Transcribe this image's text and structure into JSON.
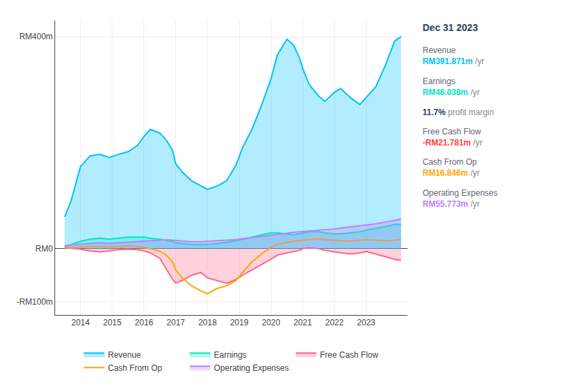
{
  "chart_data": {
    "type": "line",
    "x": [
      2013.5,
      2013.7,
      2014.0,
      2014.3,
      2014.6,
      2014.9,
      2015.2,
      2015.5,
      2015.8,
      2016.0,
      2016.2,
      2016.5,
      2016.7,
      2016.9,
      2017.0,
      2017.2,
      2017.5,
      2017.8,
      2018.0,
      2018.3,
      2018.6,
      2018.9,
      2019.1,
      2019.4,
      2019.7,
      2020.0,
      2020.2,
      2020.5,
      2020.7,
      2020.9,
      2021.0,
      2021.2,
      2021.5,
      2021.7,
      2022.0,
      2022.2,
      2022.5,
      2022.8,
      2023.0,
      2023.3,
      2023.6,
      2023.9,
      2024.1
    ],
    "series": [
      {
        "name": "Revenue",
        "color": "#00bfff",
        "type": "area",
        "values": [
          60,
          90,
          155,
          175,
          178,
          172,
          178,
          183,
          195,
          212,
          225,
          218,
          205,
          185,
          160,
          145,
          128,
          118,
          112,
          118,
          128,
          158,
          190,
          225,
          270,
          320,
          365,
          395,
          385,
          360,
          340,
          310,
          288,
          278,
          295,
          302,
          285,
          272,
          285,
          305,
          345,
          392,
          400
        ]
      },
      {
        "name": "Earnings",
        "color": "#00e8c0",
        "type": "area",
        "values": [
          5,
          8,
          14,
          18,
          20,
          18,
          20,
          22,
          22,
          22,
          20,
          18,
          16,
          13,
          11,
          10,
          8,
          8,
          8,
          10,
          12,
          15,
          18,
          22,
          26,
          30,
          30,
          28,
          26,
          28,
          30,
          32,
          32,
          30,
          28,
          28,
          30,
          32,
          35,
          38,
          42,
          46,
          46
        ]
      },
      {
        "name": "Free Cash Flow",
        "color": "#ff6688",
        "type": "area",
        "values": [
          2,
          1,
          -1,
          -4,
          -6,
          -4,
          -2,
          -1,
          -2,
          -4,
          -8,
          -18,
          -38,
          -58,
          -65,
          -60,
          -50,
          -45,
          -55,
          -60,
          -65,
          -58,
          -50,
          -40,
          -30,
          -20,
          -12,
          -8,
          -5,
          -3,
          0,
          2,
          0,
          -3,
          -6,
          -8,
          -10,
          -8,
          -5,
          -10,
          -15,
          -20,
          -22
        ]
      },
      {
        "name": "Cash From Op",
        "color": "#ffa500",
        "type": "line",
        "values": [
          2,
          2,
          3,
          4,
          4,
          3,
          4,
          5,
          4,
          2,
          0,
          -5,
          -12,
          -25,
          -40,
          -55,
          -70,
          -80,
          -85,
          -75,
          -70,
          -60,
          -45,
          -25,
          -10,
          3,
          8,
          12,
          14,
          15,
          16,
          17,
          18,
          17,
          16,
          15,
          14,
          16,
          17,
          16,
          15,
          16,
          17
        ]
      },
      {
        "name": "Operating Expenses",
        "color": "#bf7fff",
        "type": "area",
        "values": [
          6,
          7,
          9,
          10,
          11,
          10,
          11,
          12,
          13,
          14,
          15,
          16,
          17,
          16,
          15,
          14,
          13,
          13,
          14,
          15,
          16,
          17,
          19,
          21,
          23,
          25,
          27,
          29,
          31,
          32,
          33,
          34,
          35,
          36,
          37,
          39,
          41,
          43,
          45,
          47,
          50,
          54,
          56
        ]
      }
    ],
    "xlim": [
      2013.2,
      2024.3
    ],
    "xticks": [
      2014,
      2015,
      2016,
      2017,
      2018,
      2019,
      2020,
      2021,
      2022,
      2023
    ],
    "ylim": [
      -125,
      430
    ],
    "yticks": [
      {
        "value": 400,
        "label": "RM400m"
      },
      {
        "value": 0,
        "label": "RM0"
      },
      {
        "value": -100,
        "label": "-RM100m"
      }
    ],
    "grid": true,
    "legend": "bottom",
    "annotations": [
      {
        "text": "Dec 31 2023"
      },
      {
        "label": "Revenue",
        "text": "RM391.871m",
        "unit": " /yr",
        "color": "#00bfff"
      },
      {
        "label": "Earnings",
        "text": "RM46.038m",
        "unit": " /yr",
        "color": "#00e8c0"
      },
      {
        "text": "11.7%",
        "unit": " profit margin"
      },
      {
        "label": "Free Cash Flow",
        "text": "-RM21.781m",
        "unit": " /yr",
        "color": "#ff4444"
      },
      {
        "label": "Cash From Op",
        "text": "RM16.846m",
        "unit": " /yr",
        "color": "#ffa500"
      },
      {
        "label": "Operating Expenses",
        "text": "RM55.773m",
        "unit": " /yr",
        "color": "#bf7fff"
      }
    ]
  }
}
